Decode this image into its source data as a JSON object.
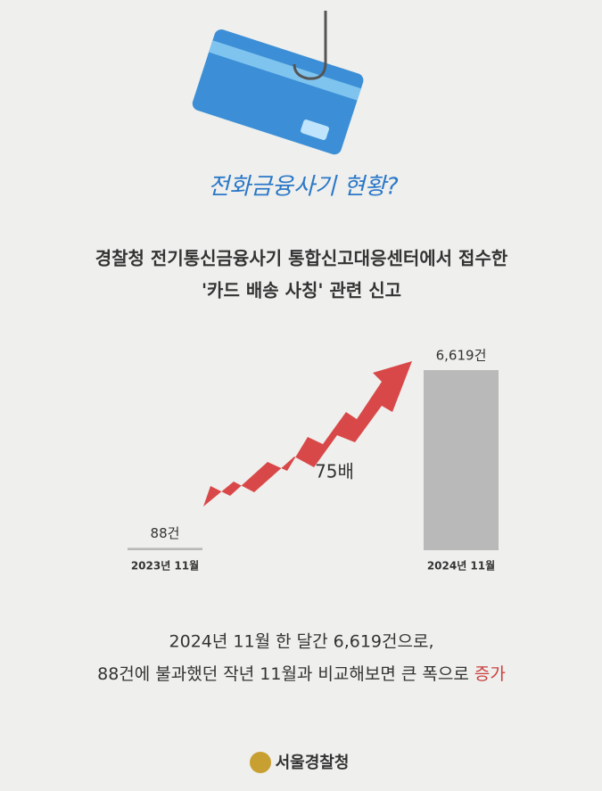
{
  "header": {
    "tagline": "전화금융사기 현황?"
  },
  "chart_data": {
    "type": "bar",
    "title": "경찰청 전기통신금융사기 통합신고대응센터에서 접수한",
    "subtitle": "'카드 배송 사칭' 관련 신고",
    "categories": [
      "2023년 11월",
      "2024년 11월"
    ],
    "values": [
      88,
      6619
    ],
    "value_labels": [
      "88건",
      "6,619건"
    ],
    "color": "#b9b9b9",
    "annotation": "75배"
  },
  "caption": {
    "line1": "2024년 11월 한 달간 6,619건으로,",
    "line2": "88건에 불과했던 작년 11월과 비교해보면 큰 폭으로 ",
    "highlight": "증가"
  },
  "footer": {
    "logo": "서울경찰청"
  }
}
